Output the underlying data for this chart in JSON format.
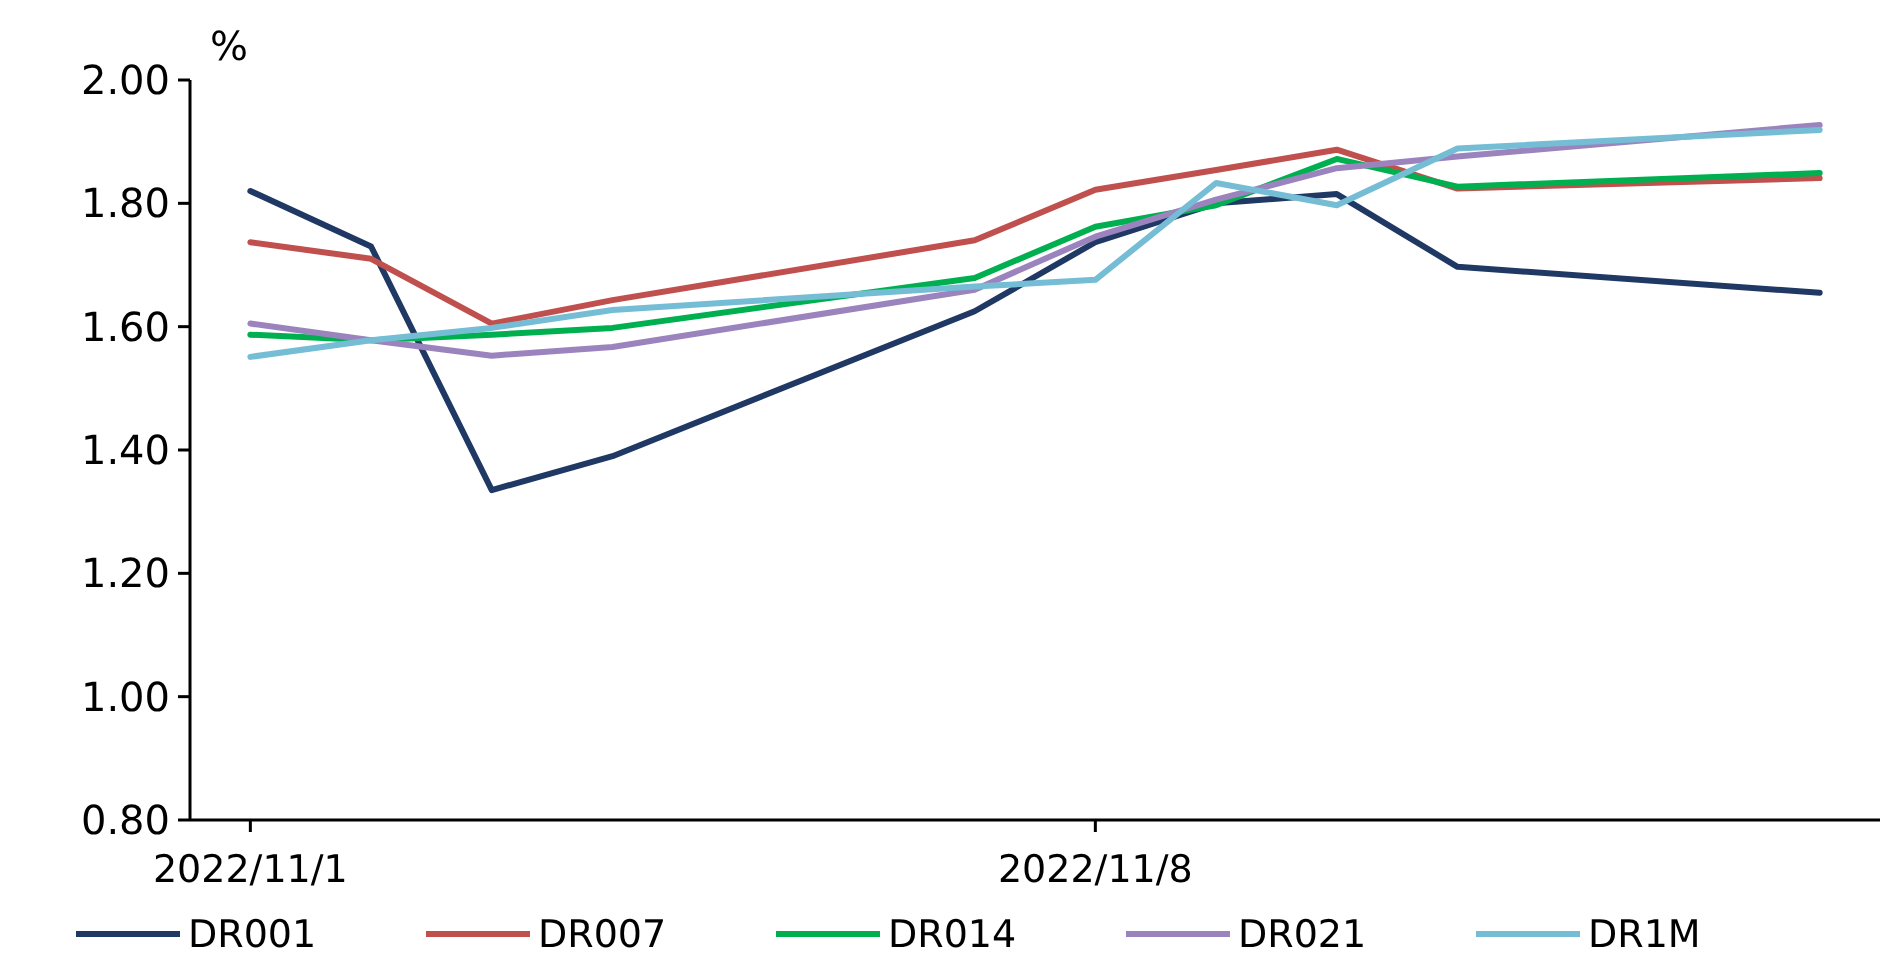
{
  "chart_data": {
    "type": "line",
    "ylabel": "%",
    "x": [
      "2022-11-01",
      "2022-11-02",
      "2022-11-03",
      "2022-11-04",
      "2022-11-07",
      "2022-11-08",
      "2022-11-09",
      "2022-11-10",
      "2022-11-11",
      "2022-11-14"
    ],
    "xlim": [
      "2022-10-31T12:00",
      "2022-11-14T12:00"
    ],
    "xticks": [
      {
        "value": "2022-11-01",
        "label": "2022/11/1"
      },
      {
        "value": "2022-11-08",
        "label": "2022/11/8"
      }
    ],
    "ylim": [
      0.8,
      2.0
    ],
    "yticks": [
      {
        "value": 0.8,
        "label": "0.80"
      },
      {
        "value": 1.0,
        "label": "1.00"
      },
      {
        "value": 1.2,
        "label": "1.20"
      },
      {
        "value": 1.4,
        "label": "1.40"
      },
      {
        "value": 1.6,
        "label": "1.60"
      },
      {
        "value": 1.8,
        "label": "1.80"
      },
      {
        "value": 2.0,
        "label": "2.00"
      }
    ],
    "series": [
      {
        "name": "DR001",
        "color": "#203864",
        "values": [
          1.82,
          1.73,
          1.335,
          1.39,
          1.625,
          1.737,
          1.8,
          1.815,
          1.697,
          1.655
        ]
      },
      {
        "name": "DR007",
        "color": "#c0504d",
        "values": [
          1.737,
          1.71,
          1.605,
          1.643,
          1.74,
          1.822,
          1.854,
          1.887,
          1.824,
          1.841
        ]
      },
      {
        "name": "DR014",
        "color": "#00b050",
        "values": [
          1.587,
          1.578,
          1.587,
          1.598,
          1.679,
          1.762,
          1.797,
          1.872,
          1.827,
          1.849
        ]
      },
      {
        "name": "DR021",
        "color": "#9b84bd",
        "values": [
          1.605,
          1.578,
          1.553,
          1.567,
          1.66,
          1.746,
          1.806,
          1.857,
          1.876,
          1.927
        ]
      },
      {
        "name": "DR1M",
        "color": "#75bdd5",
        "values": [
          1.551,
          1.578,
          1.598,
          1.627,
          1.665,
          1.676,
          1.833,
          1.797,
          1.889,
          1.919
        ]
      }
    ],
    "grid": false,
    "legend": "bottom",
    "marker": "none",
    "line_style": "solid"
  }
}
